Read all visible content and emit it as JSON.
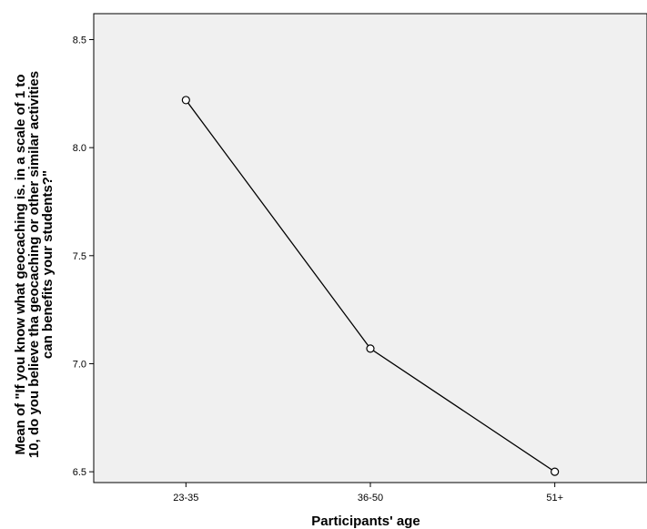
{
  "chart_data": {
    "type": "line",
    "title": "",
    "xlabel": "Participants' age",
    "ylabel_lines": [
      "Mean of  \"If you know what geocaching is. in a scale of 1 to",
      "10, do you believe tha geocaching or other similar activities",
      "can benefits your students?\""
    ],
    "categories": [
      "23-35",
      "36-50",
      "51+"
    ],
    "series": [
      {
        "values": [
          8.22,
          7.07,
          6.5
        ]
      }
    ],
    "ylim": [
      6.45,
      8.62
    ],
    "yticks": [
      "6.5",
      "7.0",
      "7.5",
      "8.0",
      "8.5"
    ],
    "grid": false,
    "legend": "none",
    "colors": {
      "plot_background": "#f0f0f0",
      "line": "#000000",
      "marker_fill": "#ffffff"
    }
  }
}
